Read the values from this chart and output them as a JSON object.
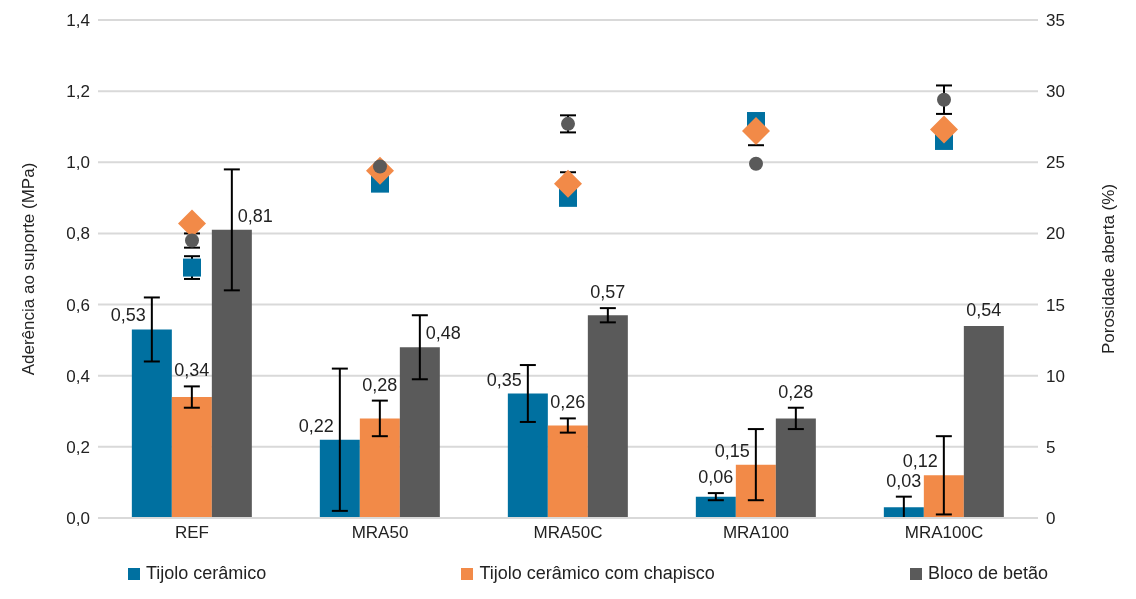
{
  "chart_data": {
    "type": "bar",
    "categories": [
      "REF",
      "MRA50",
      "MRA50C",
      "MRA100",
      "MRA100C"
    ],
    "ylabel": "Aderência ao suporte (MPa)",
    "y2label": "Porosidade aberta (%)",
    "ylim": [
      0,
      1.4
    ],
    "yticks": [
      {
        "value": 0,
        "label": "0,0"
      },
      {
        "value": 0.2,
        "label": "0,2"
      },
      {
        "value": 0.4,
        "label": "0,4"
      },
      {
        "value": 0.6,
        "label": "0,6"
      },
      {
        "value": 0.8,
        "label": "0,8"
      },
      {
        "value": 1.0,
        "label": "1,0"
      },
      {
        "value": 1.2,
        "label": "1,2"
      },
      {
        "value": 1.4,
        "label": "1,4"
      }
    ],
    "y2lim": [
      0,
      35
    ],
    "y2ticks": [
      0,
      5,
      10,
      15,
      20,
      25,
      30,
      35
    ],
    "grid": "y",
    "legend": "bottom",
    "series": [
      {
        "name": "Tijolo cerâmico",
        "color": "#0070a0",
        "values": [
          0.53,
          0.22,
          0.35,
          0.06,
          0.03
        ],
        "errors": [
          0.09,
          0.2,
          0.08,
          0.01,
          0.03
        ],
        "value_labels": [
          "0,53",
          "0,22",
          "0,35",
          "0,06",
          "0,03"
        ]
      },
      {
        "name": "Tijolo cerâmico com chapisco",
        "color": "#f28a48",
        "values": [
          0.34,
          0.28,
          0.26,
          0.15,
          0.12
        ],
        "errors": [
          0.03,
          0.05,
          0.02,
          0.1,
          0.11
        ],
        "value_labels": [
          "0,34",
          "0,28",
          "0,26",
          "0,15",
          "0,12"
        ]
      },
      {
        "name": "Bloco de betão",
        "color": "#5a5a5a",
        "values": [
          0.81,
          0.48,
          0.57,
          0.28,
          0.54
        ],
        "errors": [
          0.17,
          0.09,
          0.02,
          0.03,
          0
        ],
        "value_labels": [
          "0,81",
          "0,48",
          "0,57",
          "0,28",
          "0,54"
        ]
      },
      {
        "type": "scatter",
        "axis": "y2",
        "marker": "square",
        "color": "#0070a0",
        "values": [
          17.6,
          23.5,
          22.5,
          27.9,
          26.5
        ],
        "errors": [
          0.8,
          null,
          null,
          null,
          null
        ]
      },
      {
        "type": "scatter",
        "axis": "y2",
        "marker": "diamond",
        "color": "#f28a48",
        "values": [
          20.7,
          24.4,
          23.5,
          27.2,
          27.3
        ],
        "errors": [
          null,
          null,
          0.8,
          1.0,
          null
        ]
      },
      {
        "type": "scatter",
        "axis": "y2",
        "marker": "circle",
        "color": "#5a5a5a",
        "values": [
          19.5,
          24.7,
          27.7,
          24.9,
          29.4
        ],
        "errors": [
          0.5,
          null,
          0.6,
          null,
          1.0
        ]
      }
    ]
  }
}
